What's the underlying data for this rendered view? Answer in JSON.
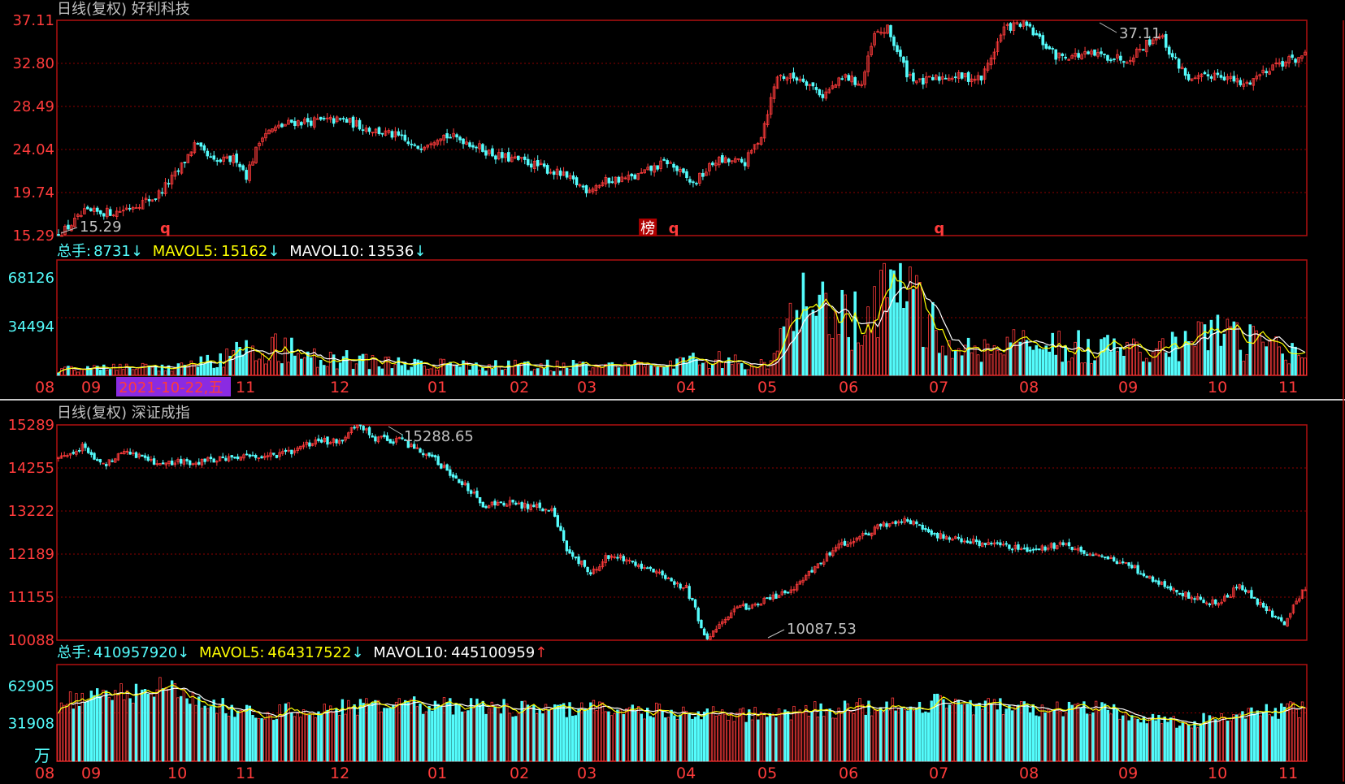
{
  "colors": {
    "up": "#ff3b3b",
    "down": "#54fcfc",
    "axis_price": "#ff3b3b",
    "axis_vol": "#54fcfc",
    "border": "#b01010",
    "grid": "#8b0000",
    "ma5": "#ffff00",
    "ma10": "#ffffff",
    "title": "#c0c0c0",
    "date_highlight_bg": "#8a2be2",
    "month": "#ff3b3b"
  },
  "top": {
    "title": "日线(复权) 好利科技",
    "price_ticks": [
      "37.11",
      "32.80",
      "28.49",
      "24.04",
      "19.74",
      "15.29"
    ],
    "high_label": "37.11",
    "low_label": "15.29",
    "markers": [
      {
        "text": "q",
        "index": 33
      },
      {
        "text": "榜",
        "index": 182
      },
      {
        "text": "q",
        "index": 190
      },
      {
        "text": "q",
        "index": 272
      }
    ],
    "vol_header": {
      "zs_label": "总手:",
      "zs_value": "8731",
      "zs_arrow": "↓",
      "ma5_label": "MAVOL5:",
      "ma5_value": "15162",
      "ma5_arrow": "↓",
      "ma10_label": "MAVOL10:",
      "ma10_value": "13536",
      "ma10_arrow": "↓"
    },
    "vol_ticks": [
      "68126",
      "34494"
    ],
    "month_labels": [
      "08",
      "09",
      "11",
      "12",
      "01",
      "02",
      "03",
      "04",
      "05",
      "06",
      "07",
      "08",
      "09",
      "10",
      "11"
    ],
    "date_highlight": "2021-10-22,五"
  },
  "bottom": {
    "title": "日线(复权) 深证成指",
    "price_ticks": [
      "15289",
      "14255",
      "13222",
      "12189",
      "11155",
      "10088"
    ],
    "high_label": "15288.65",
    "low_label": "10087.53",
    "vol_header": {
      "zs_label": "总手:",
      "zs_value": "410957920",
      "zs_arrow": "↓",
      "ma5_label": "MAVOL5:",
      "ma5_value": "464317522",
      "ma5_arrow": "↓",
      "ma10_label": "MAVOL10:",
      "ma10_value": "445100959",
      "ma10_arrow": "↑"
    },
    "vol_ticks": [
      "62905",
      "31908"
    ],
    "vol_unit": "万",
    "month_labels": [
      "08",
      "09",
      "10",
      "11",
      "12",
      "01",
      "02",
      "03",
      "04",
      "05",
      "06",
      "07",
      "08",
      "09",
      "10",
      "11"
    ]
  },
  "chart_data": [
    {
      "type": "candlestick",
      "title": "日线(复权) 好利科技",
      "ylim": [
        15.29,
        37.11
      ],
      "n_bars": 300,
      "price_path": [
        [
          0,
          15.3
        ],
        [
          8,
          17.6
        ],
        [
          18,
          17.7
        ],
        [
          30,
          19.2
        ],
        [
          37,
          21.8
        ],
        [
          42,
          24.5
        ],
        [
          48,
          22.7
        ],
        [
          55,
          23.1
        ],
        [
          58,
          21.4
        ],
        [
          63,
          25.6
        ],
        [
          72,
          26.8
        ],
        [
          80,
          26.9
        ],
        [
          88,
          27.0
        ],
        [
          96,
          26.1
        ],
        [
          105,
          25.3
        ],
        [
          110,
          24.1
        ],
        [
          118,
          25.5
        ],
        [
          125,
          25.0
        ],
        [
          135,
          23.4
        ],
        [
          145,
          22.7
        ],
        [
          155,
          21.5
        ],
        [
          163,
          20.0
        ],
        [
          170,
          20.9
        ],
        [
          178,
          21.2
        ],
        [
          188,
          22.8
        ],
        [
          196,
          20.5
        ],
        [
          203,
          22.9
        ],
        [
          212,
          22.7
        ],
        [
          217,
          25.5
        ],
        [
          222,
          31.5
        ],
        [
          230,
          31.2
        ],
        [
          236,
          29.5
        ],
        [
          243,
          31.4
        ],
        [
          248,
          30.6
        ],
        [
          252,
          35.6
        ],
        [
          256,
          36.2
        ],
        [
          262,
          31.8
        ],
        [
          266,
          30.8
        ],
        [
          275,
          31.5
        ],
        [
          285,
          31.2
        ],
        [
          292,
          36.3
        ],
        [
          298,
          36.8
        ],
        [
          308,
          33.5
        ],
        [
          320,
          33.6
        ],
        [
          330,
          33.2
        ],
        [
          340,
          35.8
        ],
        [
          344,
          33.4
        ],
        [
          350,
          30.9
        ],
        [
          358,
          31.8
        ],
        [
          366,
          30.5
        ],
        [
          375,
          32.6
        ],
        [
          385,
          33.5
        ]
      ],
      "high": 37.11,
      "low": 15.29,
      "volume": {
        "ylim": [
          0,
          80000
        ],
        "ticks": [
          68126,
          34494
        ],
        "last": 8731,
        "mavol5": 15162,
        "mavol10": 13536,
        "profile": [
          [
            0,
            4000
          ],
          [
            40,
            6000
          ],
          [
            55,
            15000
          ],
          [
            70,
            20000
          ],
          [
            80,
            12000
          ],
          [
            110,
            8000
          ],
          [
            130,
            7000
          ],
          [
            170,
            6500
          ],
          [
            205,
            11000
          ],
          [
            220,
            8000
          ],
          [
            228,
            45000
          ],
          [
            245,
            40000
          ],
          [
            253,
            55000
          ],
          [
            260,
            70000
          ],
          [
            275,
            15000
          ],
          [
            290,
            20000
          ],
          [
            300,
            25000
          ],
          [
            320,
            18000
          ],
          [
            340,
            15000
          ],
          [
            350,
            30000
          ],
          [
            365,
            25000
          ],
          [
            385,
            12000
          ]
        ]
      }
    },
    {
      "type": "candlestick",
      "title": "日线(复权) 深证成指",
      "ylim": [
        10087.53,
        15288.65
      ],
      "n_bars": 300,
      "price_path": [
        [
          0,
          14500
        ],
        [
          8,
          14750
        ],
        [
          15,
          14300
        ],
        [
          22,
          14700
        ],
        [
          28,
          14500
        ],
        [
          35,
          14350
        ],
        [
          45,
          14400
        ],
        [
          60,
          14500
        ],
        [
          75,
          14580
        ],
        [
          85,
          14850
        ],
        [
          95,
          14950
        ],
        [
          100,
          15288
        ],
        [
          106,
          14950
        ],
        [
          115,
          14900
        ],
        [
          125,
          14500
        ],
        [
          135,
          13900
        ],
        [
          142,
          13350
        ],
        [
          150,
          13400
        ],
        [
          160,
          13300
        ],
        [
          165,
          13200
        ],
        [
          170,
          12300
        ],
        [
          178,
          11700
        ],
        [
          185,
          12200
        ],
        [
          195,
          11900
        ],
        [
          205,
          11500
        ],
        [
          210,
          11350
        ],
        [
          217,
          10090
        ],
        [
          225,
          10800
        ],
        [
          235,
          11000
        ],
        [
          245,
          11300
        ],
        [
          260,
          12300
        ],
        [
          275,
          12850
        ],
        [
          284,
          13000
        ],
        [
          295,
          12600
        ],
        [
          310,
          12400
        ],
        [
          325,
          12250
        ],
        [
          335,
          12400
        ],
        [
          345,
          12200
        ],
        [
          358,
          11900
        ],
        [
          370,
          11400
        ],
        [
          380,
          11100
        ],
        [
          388,
          10950
        ],
        [
          395,
          11400
        ],
        [
          405,
          10750
        ],
        [
          410,
          10500
        ],
        [
          417,
          11350
        ]
      ],
      "high": 15288.65,
      "low": 10087.53,
      "volume": {
        "ylim": [
          0,
          80000
        ],
        "ticks": [
          62905,
          31908
        ],
        "unit": "万",
        "last": 410957920,
        "mavol5": 464317522,
        "mavol10": 445100959,
        "profile": [
          [
            0,
            48000
          ],
          [
            20,
            55000
          ],
          [
            35,
            62000
          ],
          [
            50,
            50000
          ],
          [
            60,
            40000
          ],
          [
            80,
            42000
          ],
          [
            110,
            45000
          ],
          [
            140,
            47000
          ],
          [
            160,
            42000
          ],
          [
            180,
            45000
          ],
          [
            210,
            40000
          ],
          [
            230,
            39000
          ],
          [
            260,
            43000
          ],
          [
            290,
            48000
          ],
          [
            310,
            45000
          ],
          [
            330,
            44000
          ],
          [
            345,
            46000
          ],
          [
            360,
            38000
          ],
          [
            375,
            31000
          ],
          [
            395,
            38000
          ],
          [
            417,
            44000
          ]
        ]
      }
    }
  ]
}
